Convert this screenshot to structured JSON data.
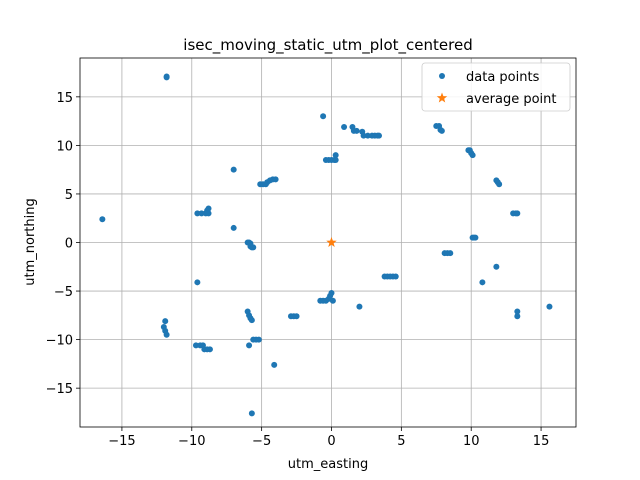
{
  "chart_data": {
    "type": "scatter",
    "title": "isec_moving_static_utm_plot_centered",
    "xlabel": "utm_easting",
    "ylabel": "utm_northing",
    "xlim": [
      -18,
      17.5
    ],
    "ylim": [
      -19,
      19
    ],
    "xticks": [
      -15,
      -10,
      -5,
      0,
      5,
      10,
      15
    ],
    "xtick_labels": [
      "−15",
      "−10",
      "−5",
      "0",
      "5",
      "10",
      "15"
    ],
    "yticks": [
      -15,
      -10,
      -5,
      0,
      5,
      10,
      15
    ],
    "ytick_labels": [
      "−15",
      "−10",
      "−5",
      "0",
      "5",
      "10",
      "15"
    ],
    "grid": true,
    "legend_position": "top-right",
    "series": [
      {
        "name": "data points",
        "marker": "circle",
        "color": "#1f77b4",
        "points": [
          [
            -11.8,
            17.0
          ],
          [
            -11.8,
            17.1
          ],
          [
            -0.6,
            13.0
          ],
          [
            -0.4,
            8.5
          ],
          [
            -0.2,
            8.5
          ],
          [
            0.0,
            8.5
          ],
          [
            0.2,
            8.5
          ],
          [
            0.3,
            8.5
          ],
          [
            0.3,
            9.0
          ],
          [
            0.9,
            11.9
          ],
          [
            1.5,
            11.9
          ],
          [
            1.6,
            11.5
          ],
          [
            1.8,
            11.5
          ],
          [
            2.2,
            11.4
          ],
          [
            2.3,
            11.0
          ],
          [
            2.6,
            11.0
          ],
          [
            2.9,
            11.0
          ],
          [
            3.1,
            11.0
          ],
          [
            3.3,
            11.0
          ],
          [
            3.4,
            11.0
          ],
          [
            7.5,
            12.0
          ],
          [
            7.7,
            12.0
          ],
          [
            7.8,
            11.6
          ],
          [
            7.9,
            11.5
          ],
          [
            9.8,
            9.5
          ],
          [
            9.9,
            9.5
          ],
          [
            10.0,
            9.2
          ],
          [
            10.1,
            9.0
          ],
          [
            11.8,
            6.4
          ],
          [
            11.9,
            6.2
          ],
          [
            12.0,
            6.0
          ],
          [
            -7.0,
            7.5
          ],
          [
            -5.1,
            6.0
          ],
          [
            -4.9,
            6.0
          ],
          [
            -4.7,
            6.0
          ],
          [
            -4.6,
            6.2
          ],
          [
            -4.4,
            6.4
          ],
          [
            -4.2,
            6.5
          ],
          [
            -4.0,
            6.5
          ],
          [
            -9.6,
            3.0
          ],
          [
            -9.3,
            3.0
          ],
          [
            -9.0,
            3.0
          ],
          [
            -8.8,
            3.0
          ],
          [
            -8.9,
            3.3
          ],
          [
            -8.8,
            3.5
          ],
          [
            -16.4,
            2.4
          ],
          [
            -7.0,
            1.5
          ],
          [
            13.0,
            3.0
          ],
          [
            13.2,
            3.0
          ],
          [
            13.3,
            3.0
          ],
          [
            -6.0,
            0.0
          ],
          [
            -5.9,
            0.0
          ],
          [
            -5.8,
            -0.1
          ],
          [
            -5.8,
            -0.4
          ],
          [
            -5.7,
            -0.5
          ],
          [
            -5.6,
            -0.5
          ],
          [
            10.1,
            0.5
          ],
          [
            10.2,
            0.5
          ],
          [
            10.3,
            0.5
          ],
          [
            8.1,
            -1.1
          ],
          [
            8.3,
            -1.1
          ],
          [
            8.5,
            -1.1
          ],
          [
            11.8,
            -2.5
          ],
          [
            3.8,
            -3.5
          ],
          [
            4.0,
            -3.5
          ],
          [
            4.2,
            -3.5
          ],
          [
            4.4,
            -3.5
          ],
          [
            4.6,
            -3.5
          ],
          [
            -9.6,
            -4.1
          ],
          [
            10.8,
            -4.1
          ],
          [
            -0.8,
            -6.0
          ],
          [
            -0.6,
            -6.0
          ],
          [
            -0.4,
            -6.0
          ],
          [
            -0.2,
            -5.8
          ],
          [
            -0.1,
            -5.5
          ],
          [
            0.0,
            -5.2
          ],
          [
            0.1,
            -6.0
          ],
          [
            2.0,
            -6.6
          ],
          [
            15.6,
            -6.6
          ],
          [
            -6.0,
            -7.1
          ],
          [
            -5.9,
            -7.5
          ],
          [
            -5.8,
            -7.8
          ],
          [
            -5.7,
            -8.0
          ],
          [
            -2.9,
            -7.6
          ],
          [
            -2.7,
            -7.6
          ],
          [
            -2.5,
            -7.6
          ],
          [
            13.3,
            -7.1
          ],
          [
            13.3,
            -7.6
          ],
          [
            -11.9,
            -8.1
          ],
          [
            -12.0,
            -8.7
          ],
          [
            -11.9,
            -9.1
          ],
          [
            -11.8,
            -9.5
          ],
          [
            -5.6,
            -10.0
          ],
          [
            -5.4,
            -10.0
          ],
          [
            -5.2,
            -10.0
          ],
          [
            -5.9,
            -10.6
          ],
          [
            -9.7,
            -10.6
          ],
          [
            -9.4,
            -10.6
          ],
          [
            -9.2,
            -10.6
          ],
          [
            -9.1,
            -11.0
          ],
          [
            -8.9,
            -11.0
          ],
          [
            -8.7,
            -11.0
          ],
          [
            -4.1,
            -12.6
          ],
          [
            -5.7,
            -17.6
          ]
        ]
      },
      {
        "name": "average point",
        "marker": "star",
        "color": "#ff7f0e",
        "points": [
          [
            0.0,
            0.0
          ]
        ]
      }
    ]
  }
}
